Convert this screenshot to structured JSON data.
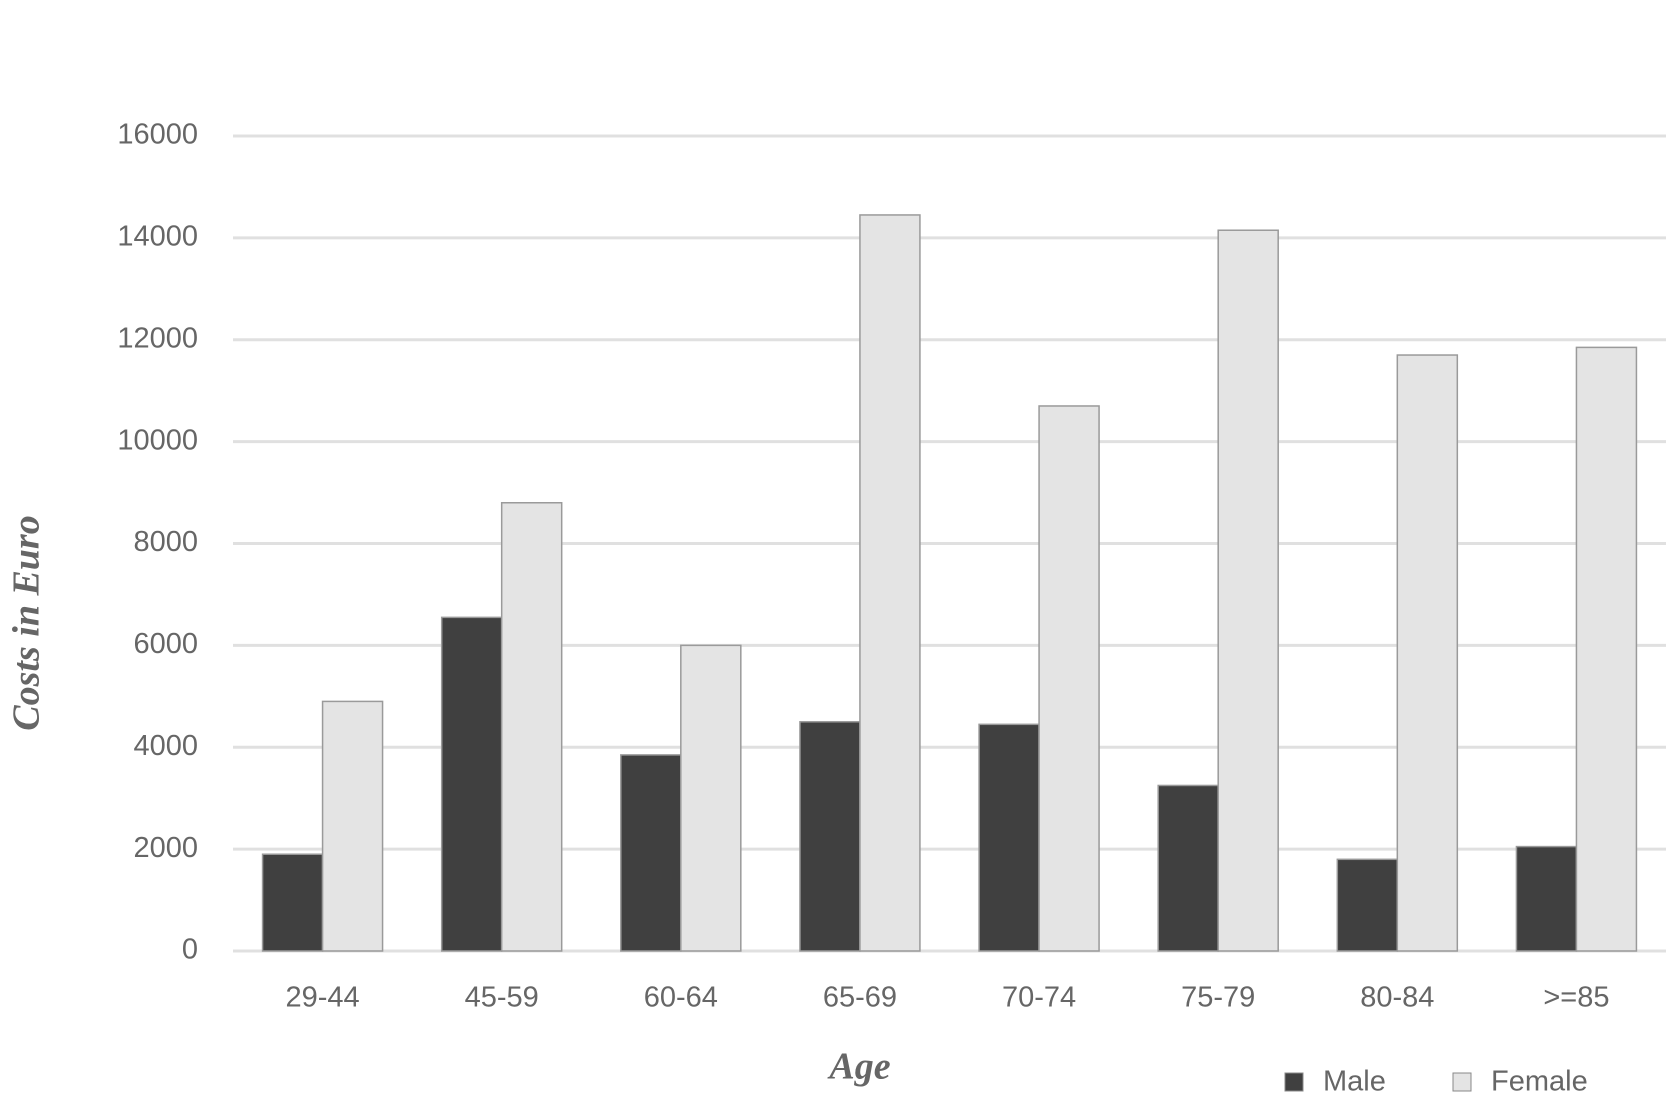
{
  "chart_data": {
    "type": "bar",
    "x_label": "Age",
    "y_label": "Costs in Euro",
    "categories": [
      "29-44",
      "45-59",
      "60-64",
      "65-69",
      "70-74",
      "75-79",
      "80-84",
      ">=85"
    ],
    "series": [
      {
        "name": "Male",
        "color": "#404040",
        "values": [
          1900,
          6550,
          3850,
          4500,
          4450,
          3250,
          1800,
          2050
        ]
      },
      {
        "name": "Female",
        "color": "#e4e4e4",
        "values": [
          4900,
          8800,
          6000,
          14450,
          10700,
          14150,
          11700,
          11850
        ]
      }
    ],
    "ylim": [
      0,
      16000
    ],
    "yticks": [
      0,
      2000,
      4000,
      6000,
      8000,
      10000,
      12000,
      14000,
      16000
    ],
    "grid": true,
    "legend": "bottom-right"
  }
}
